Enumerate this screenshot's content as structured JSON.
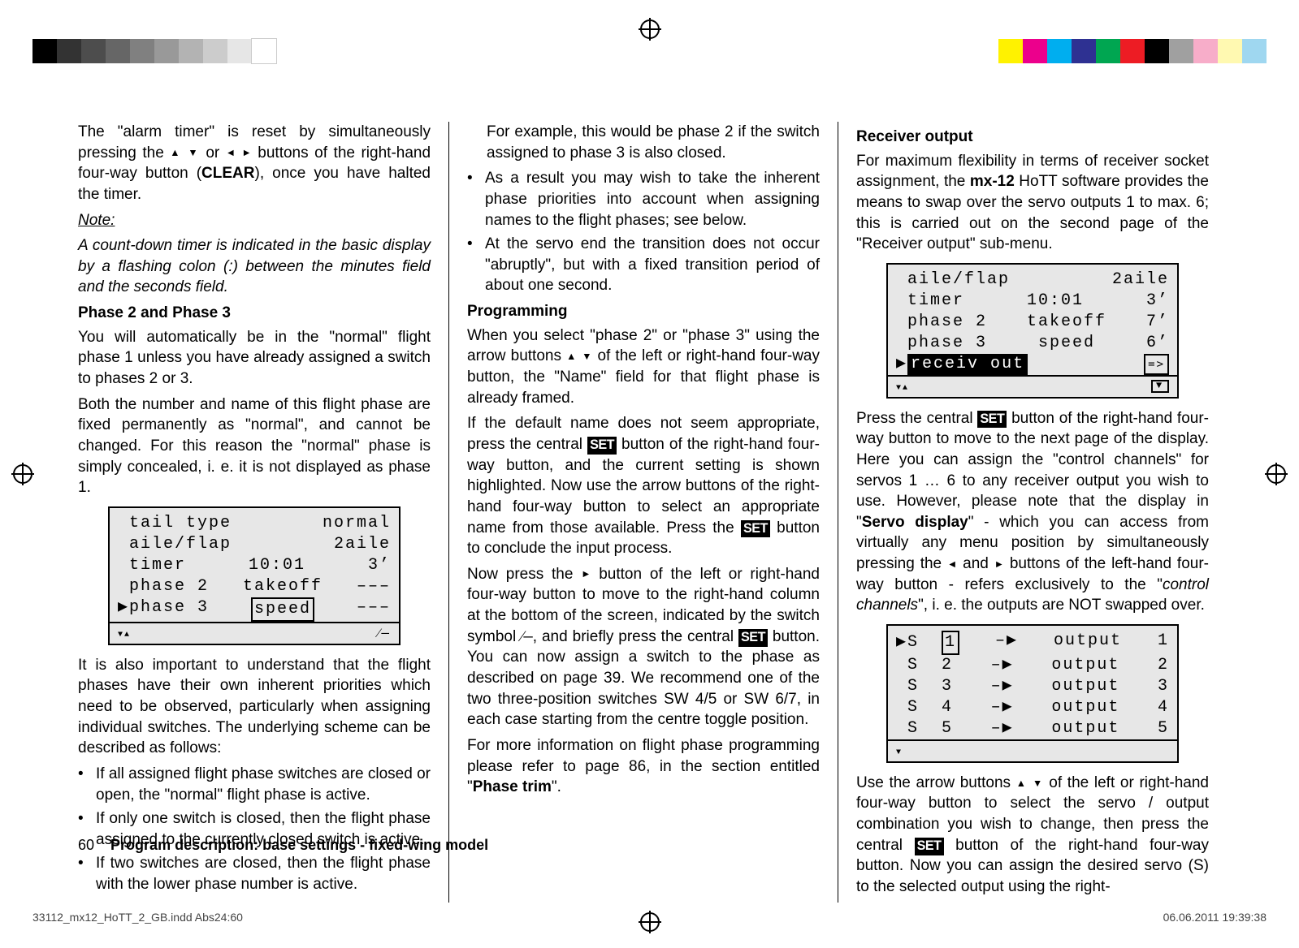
{
  "print": {
    "left_swatches": [
      "#ffffff",
      "#e6e6e6",
      "#cccccc",
      "#b3b3b3",
      "#999999",
      "#808080",
      "#666666",
      "#4d4d4d",
      "#333333",
      "#000000"
    ],
    "right_swatches": [
      "#fff200",
      "#ec008c",
      "#00aeef",
      "#2e3192",
      "#00a651",
      "#ed1c24",
      "#000000",
      "#a0a0a0",
      "#f7adc9",
      "#fff9b1",
      "#9fd7f0"
    ]
  },
  "col1": {
    "p1_a": "The \"alarm timer\" is reset by simultaneously pressing the ",
    "p1_b": " or ",
    "p1_c": " buttons of the right-hand four-way button (",
    "p1_clear": "CLEAR",
    "p1_d": "), once you have halted the timer.",
    "note_label": "Note:",
    "note_body": "A count-down timer is indicated in the basic display by a flashing colon (:) between the minutes field and the seconds field.",
    "phase_head": "Phase 2 and Phase 3",
    "p2": "You will automatically be in the \"normal\" flight phase 1 unless you have already assigned a switch to phases 2 or 3.",
    "p3": "Both the number and name of this flight phase are fixed permanently as \"normal\", and cannot be changed. For this reason the \"normal\" phase is simply concealed, i. e. it is not displayed as phase 1.",
    "p4": "It is also important to understand that the flight phases have their own inherent priorities which need to be observed, particularly when assigning individual switches. The underlying scheme can be described as follows:",
    "b1": "If all assigned flight phase switches are closed or open, the \"normal\" flight phase is active.",
    "b2": "If only one switch is closed, then the flight phase assigned to the currently closed switch is active.",
    "b3": "If two switches are closed, then the flight phase with the lower phase number is active."
  },
  "lcd1": {
    "r1_l": "tail type",
    "r1_r": "normal",
    "r2_l": "aile/flap",
    "r2_r": "2aile",
    "r3_l": "timer",
    "r3_m": "10:01",
    "r3_r": "3’",
    "r4_l": "phase 2",
    "r4_m": "takeoff",
    "r4_r": "–––",
    "r5_l": "phase 3",
    "r5_m": "speed",
    "r5_r": "–––"
  },
  "col2": {
    "lead": "For example, this would be phase 2 if the switch assigned to phase 3 is also closed.",
    "b1": "As a result you may wish to take the inherent phase priorities into account when assigning names to the flight phases; see below.",
    "b2": "At the servo end the transition does not occur \"abruptly\", but with a fixed transition period of about one second.",
    "prog_head": "Programming",
    "p1_a": "When you select \"phase 2\" or \"phase 3\" using the arrow buttons ",
    "p1_b": " of the left or right-hand four-way button, the \"Name\" field for that flight phase is already framed.",
    "p2_a": "If the default name does not seem appropriate, press the central ",
    "p2_b": " button of the right-hand four-way button, and the current setting is shown highlighted. Now use the arrow buttons of the right-hand four-way button to select an appropriate name from those available. Press the ",
    "p2_c": " button to conclude the input process.",
    "p3_a": "Now press the ",
    "p3_b": " button of the left or right-hand four-way button to move to the right-hand column at the bottom of the screen, indicated by the switch symbol ",
    "p3_c": ", and briefly press the central ",
    "p3_d": " button. You can now assign a switch to the phase as described on page 39. We recommend one of the two three-position switches SW 4/5 or SW 6/7, in each case starting from the centre toggle position.",
    "p4_a": "For more information on flight phase programming please refer to page 86, in the section entitled \"",
    "p4_b": "Phase trim",
    "p4_c": "\"."
  },
  "col3": {
    "head": "Receiver output",
    "p1_a": "For maximum flexibility in terms of receiver socket assignment, the ",
    "p1_mx": "mx-12",
    "p1_b": " HoTT software provides the means to swap over the servo outputs 1 to max. 6; this is carried out on the second page of the \"Receiver output\" sub-menu.",
    "p2_a": "Press the central ",
    "p2_b": " button of the right-hand four-way button to move to the next page of the display. Here you can assign the \"control channels\" for servos 1 … 6 to any receiver output you wish to use. However, please note that the display in \"",
    "p2_servo": "Servo display",
    "p2_c": "\" - which you can access from virtually any menu position by simultaneously pressing the ",
    "p2_d": " and ",
    "p2_e": " buttons of the left-hand four-way button - refers exclusively to the \"",
    "p2_ctrl": "control channels",
    "p2_f": "\", i. e. the outputs are NOT swapped over.",
    "p3_a": "Use the arrow buttons ",
    "p3_b": " of the left or right-hand four-way button to select the servo / output combination you wish to change, then press the central ",
    "p3_c": " button of the right-hand four-way button. Now you can assign the desired servo (S) to the selected output using the right-"
  },
  "lcd2": {
    "r1_l": "aile/flap",
    "r1_r": "2aile",
    "r2_l": "timer",
    "r2_m": "10:01",
    "r2_r": "3’",
    "r3_l": "phase 2",
    "r3_m": "takeoff",
    "r3_r": "7’",
    "r4_l": "phase 3",
    "r4_m": "speed",
    "r4_r": "6’",
    "r5_l": "receiv out"
  },
  "lcd3": {
    "rows": [
      {
        "s": "S",
        "n": "1",
        "o": "output",
        "v": "1",
        "sel": true
      },
      {
        "s": "S",
        "n": "2",
        "o": "output",
        "v": "2",
        "sel": false
      },
      {
        "s": "S",
        "n": "3",
        "o": "output",
        "v": "3",
        "sel": false
      },
      {
        "s": "S",
        "n": "4",
        "o": "output",
        "v": "4",
        "sel": false
      },
      {
        "s": "S",
        "n": "5",
        "o": "output",
        "v": "5",
        "sel": false
      }
    ]
  },
  "footer": {
    "page_num": "60",
    "title": "Program description: base settings - fixed-wing model"
  },
  "imprint": {
    "left": "33112_mx12_HoTT_2_GB.indd   Abs24:60",
    "right": "06.06.2011   19:39:38"
  },
  "set_label": "SET"
}
